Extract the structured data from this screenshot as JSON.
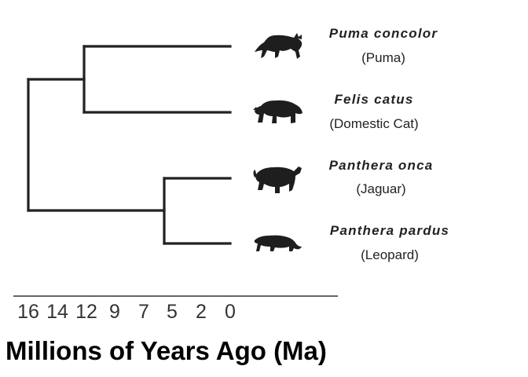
{
  "taxa": [
    {
      "scientific_name": "Puma concolor",
      "common_name": "(Puma)",
      "icon": "puma-silhouette-icon"
    },
    {
      "scientific_name": "Felis catus",
      "common_name": "(Domestic Cat)",
      "icon": "domestic-cat-silhouette-icon"
    },
    {
      "scientific_name": "Panthera onca",
      "common_name": "(Jaguar)",
      "icon": "jaguar-silhouette-icon"
    },
    {
      "scientific_name": "Panthera pardus",
      "common_name": "(Leopard)",
      "icon": "leopard-silhouette-icon"
    }
  ],
  "divergence_times_ma": {
    "puma_felis": 12,
    "onca_pardus": 5.5,
    "root": 16
  },
  "axis": {
    "ticks": [
      "16",
      "14",
      "12",
      "9",
      "7",
      "5",
      "2",
      "0"
    ],
    "title": "Millions of Years Ago (Ma)"
  },
  "colors": {
    "branch": "#222222",
    "text": "#222222",
    "title": "#000000"
  }
}
